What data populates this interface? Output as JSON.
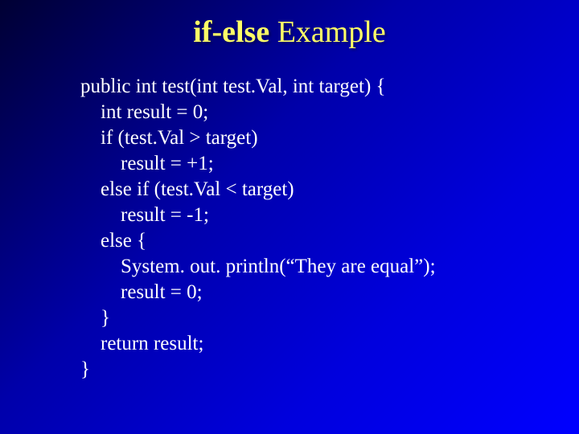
{
  "slide": {
    "title_bold": "if-else",
    "title_rest": " Example",
    "background_gradient": {
      "start": "#000033",
      "mid1": "#0000aa",
      "mid2": "#0000dd",
      "end": "#0000ff"
    },
    "title_color": "#ffff66",
    "title_fontsize": 38,
    "code_color": "#ffffff",
    "code_fontsize": 25,
    "code_lines": [
      "public int test(int test.Val, int target) {",
      "    int result = 0;",
      "    if (test.Val > target)",
      "        result = +1;",
      "    else if (test.Val < target)",
      "        result = -1;",
      "    else {",
      "        System. out. println(“They are equal”);",
      "        result = 0;",
      "    }",
      "    return result;",
      "}"
    ]
  }
}
